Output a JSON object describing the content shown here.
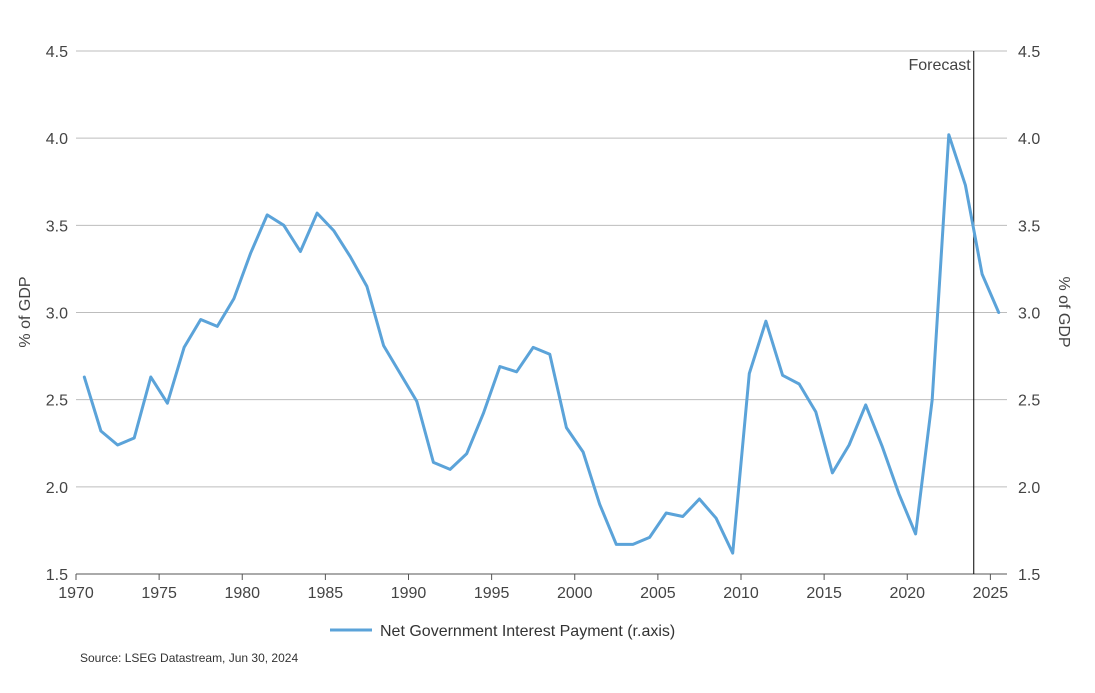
{
  "chart_data": {
    "type": "line",
    "title": "",
    "ylabel_left": "% of GDP",
    "ylabel_right": "% of GDP",
    "xlim": [
      1970,
      2026
    ],
    "ylim": [
      1.5,
      4.5
    ],
    "y_ticks": [
      "1.5",
      "2.0",
      "2.5",
      "3.0",
      "3.5",
      "4.0",
      "4.5"
    ],
    "x_ticks": [
      "1970",
      "1975",
      "1980",
      "1985",
      "1990",
      "1995",
      "2000",
      "2005",
      "2010",
      "2015",
      "2020",
      "2025"
    ],
    "grid": true,
    "forecast": {
      "label": "Forecast",
      "x": 2024
    },
    "colors": {
      "line": "#5ba3d9",
      "grid": "#bdbdbd",
      "forecast_line": "#000000"
    },
    "series": [
      {
        "name": "Net Government Interest Payment (r.axis)",
        "x": [
          1970.5,
          1971.5,
          1972.5,
          1973.5,
          1974.5,
          1975.5,
          1976.5,
          1977.5,
          1978.5,
          1979.5,
          1980.5,
          1981.5,
          1982.5,
          1983.5,
          1984.5,
          1985.5,
          1986.5,
          1987.5,
          1988.5,
          1989.5,
          1990.5,
          1991.5,
          1992.5,
          1993.5,
          1994.5,
          1995.5,
          1996.5,
          1997.5,
          1998.5,
          1999.5,
          2000.5,
          2001.5,
          2002.5,
          2003.5,
          2004.5,
          2005.5,
          2006.5,
          2007.5,
          2008.5,
          2009.5,
          2010.5,
          2011.5,
          2012.5,
          2013.5,
          2014.5,
          2015.5,
          2016.5,
          2017.5,
          2018.5,
          2019.5,
          2020.5,
          2021.5,
          2022.5,
          2023.5,
          2024.5,
          2025.5
        ],
        "y": [
          2.63,
          2.32,
          2.24,
          2.28,
          2.63,
          2.48,
          2.8,
          2.96,
          2.92,
          3.08,
          3.34,
          3.56,
          3.5,
          3.35,
          3.57,
          3.47,
          3.32,
          3.15,
          2.81,
          2.65,
          2.49,
          2.14,
          2.1,
          2.19,
          2.42,
          2.69,
          2.66,
          2.8,
          2.76,
          2.34,
          2.2,
          1.9,
          1.67,
          1.67,
          1.71,
          1.85,
          1.83,
          1.93,
          1.82,
          1.62,
          2.65,
          2.95,
          2.64,
          2.59,
          2.43,
          2.08,
          2.24,
          2.47,
          2.23,
          1.96,
          1.73,
          2.5,
          4.02,
          3.73,
          3.22,
          3.0
        ]
      }
    ]
  },
  "legend": {
    "label": "Net Government Interest Payment (r.axis)"
  },
  "footer": {
    "source": "Source: LSEG Datastream, Jun 30, 2024"
  }
}
